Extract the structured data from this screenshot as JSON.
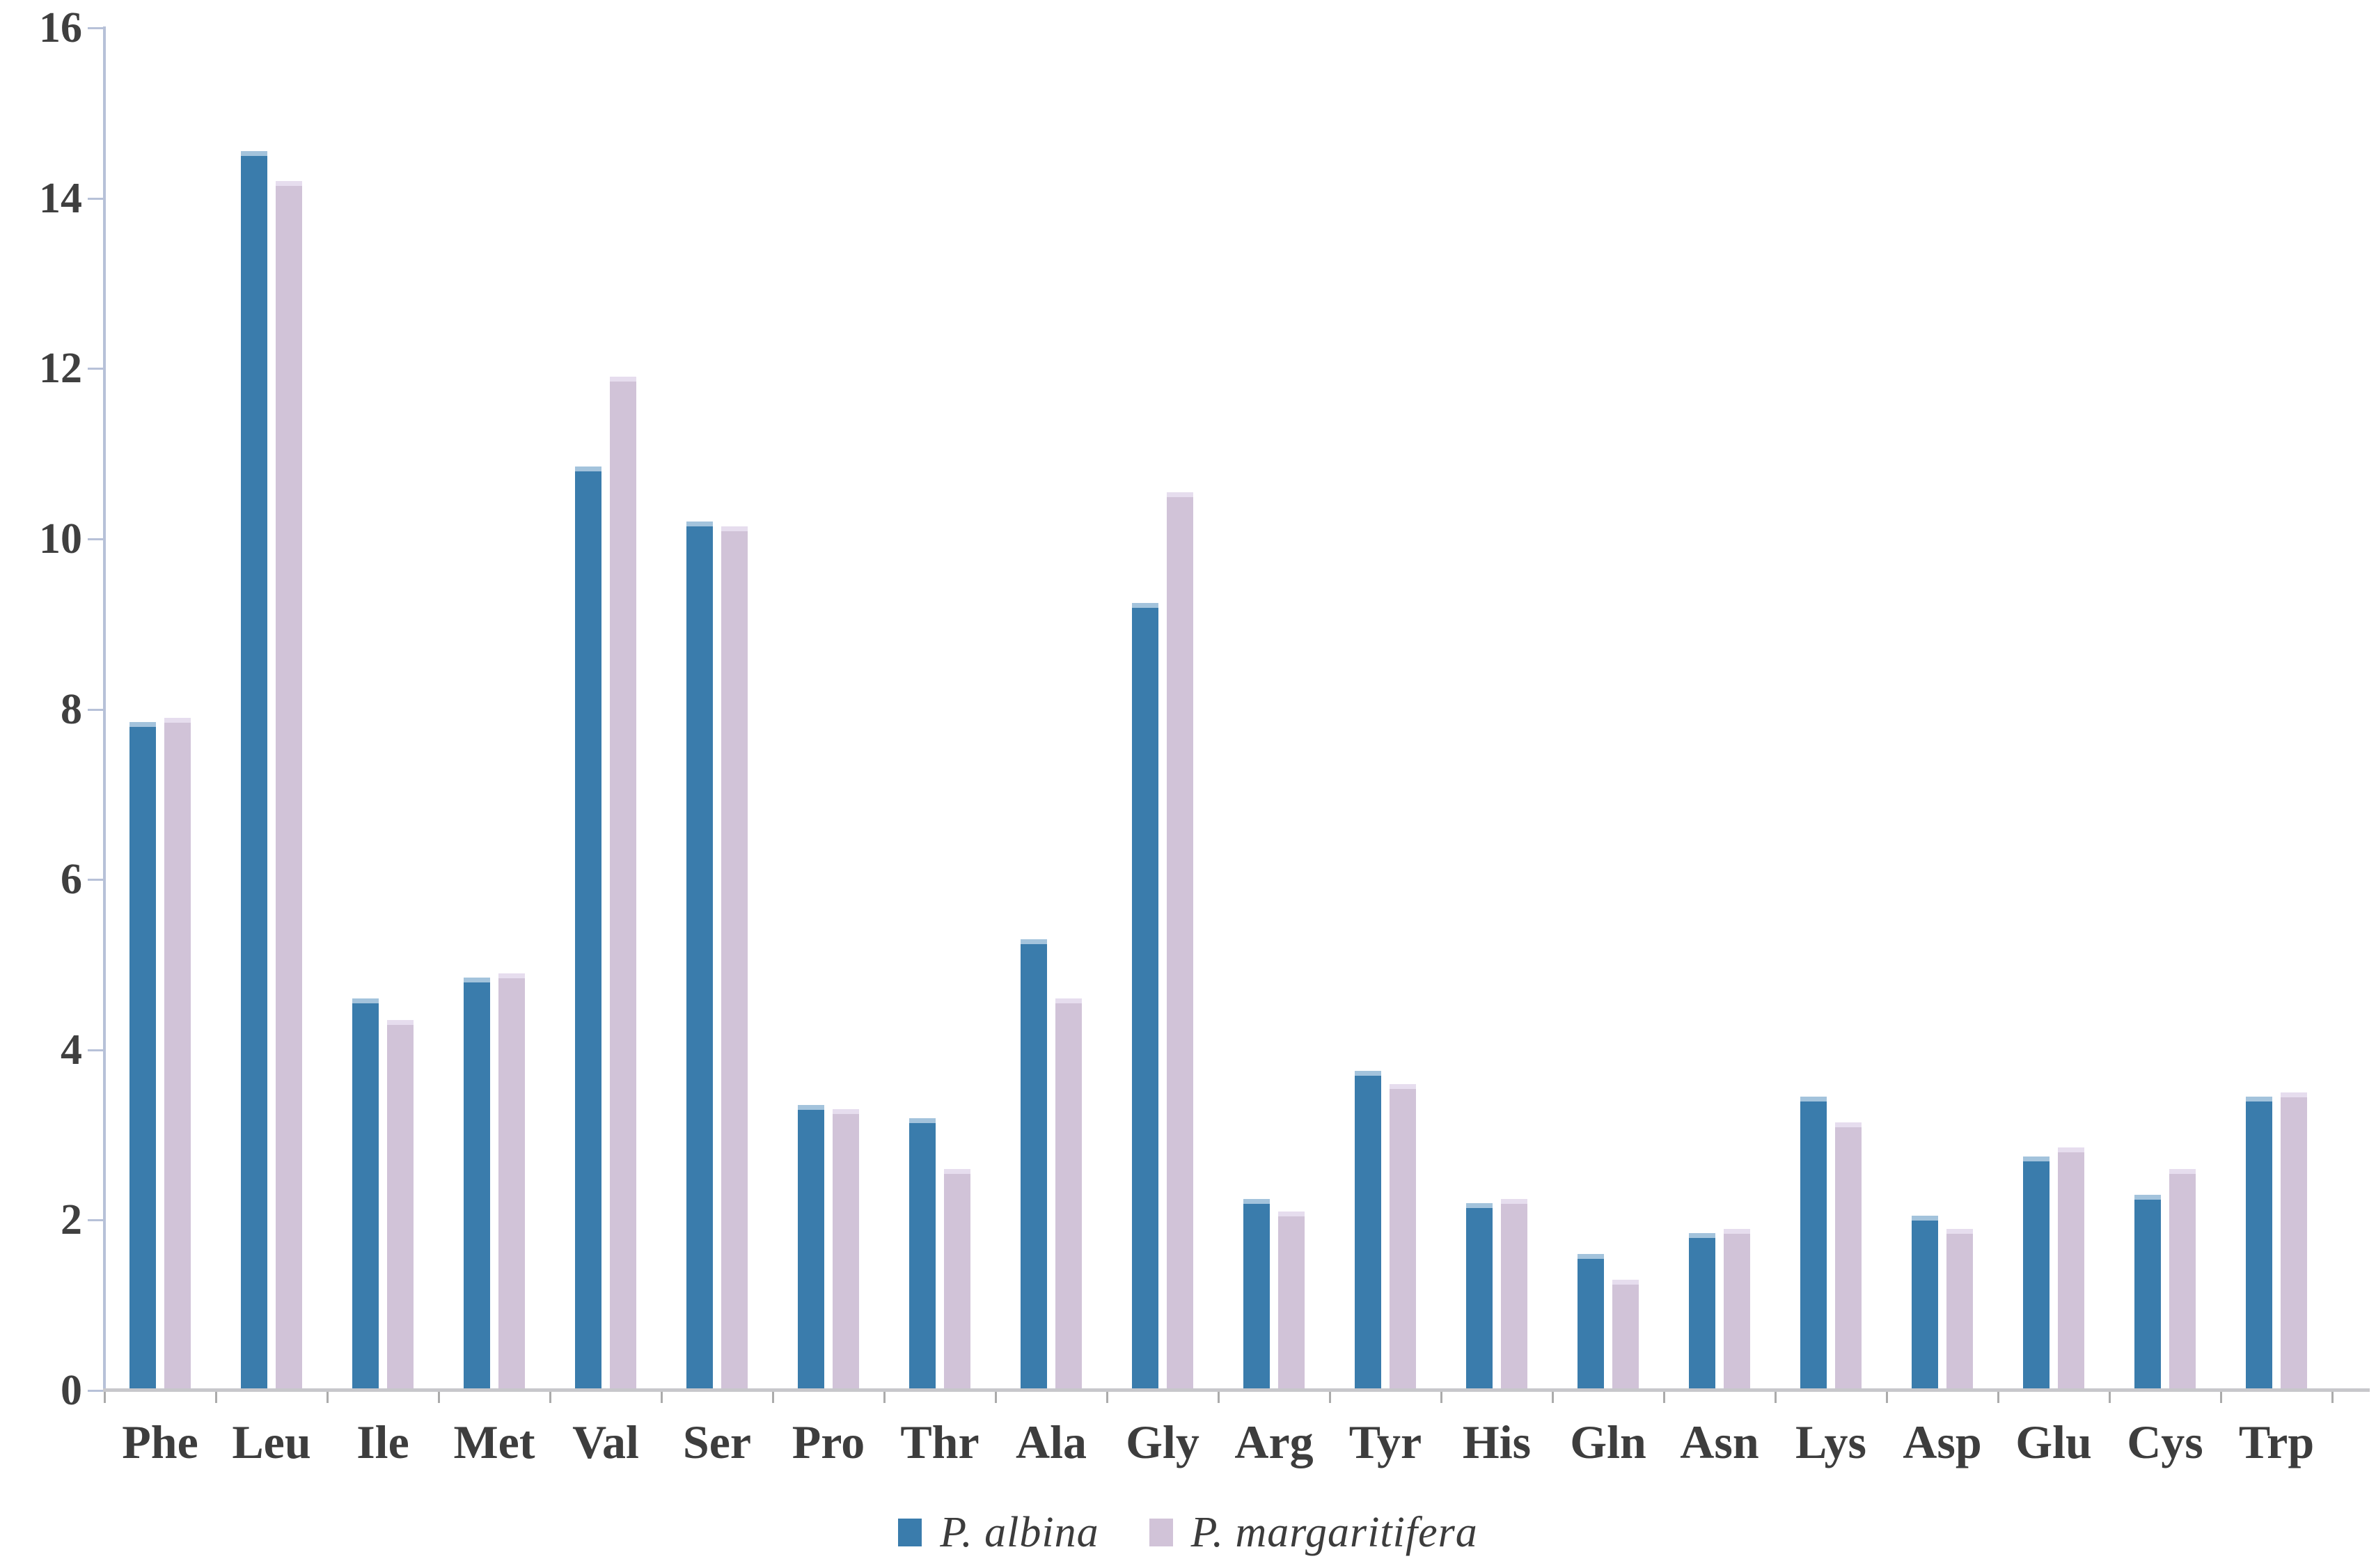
{
  "chart_data": {
    "type": "bar",
    "title": "",
    "xlabel": "",
    "ylabel": "",
    "categories": [
      "Phe",
      "Leu",
      "Ile",
      "Met",
      "Val",
      "Ser",
      "Pro",
      "Thr",
      "Ala",
      "Gly",
      "Arg",
      "Tyr",
      "His",
      "Gln",
      "Asn",
      "Lys",
      "Asp",
      "Glu",
      "Cys",
      "Trp"
    ],
    "series": [
      {
        "name": "P. albina",
        "color": "#3a7cac",
        "values": [
          7.85,
          14.55,
          4.6,
          4.85,
          10.85,
          10.2,
          3.35,
          3.2,
          5.3,
          9.25,
          2.25,
          3.75,
          2.2,
          1.6,
          1.85,
          3.45,
          2.05,
          2.75,
          2.3,
          3.45
        ]
      },
      {
        "name": "P. margaritifera",
        "color": "#d1c3d8",
        "values": [
          7.9,
          14.2,
          4.35,
          4.9,
          11.9,
          10.15,
          3.3,
          2.6,
          4.6,
          10.55,
          2.1,
          3.6,
          2.25,
          1.3,
          1.9,
          3.15,
          1.9,
          2.85,
          2.6,
          3.5
        ]
      }
    ],
    "ylim": [
      0,
      16
    ],
    "yticks": [
      0,
      2,
      4,
      6,
      8,
      10,
      12,
      14,
      16
    ],
    "grid": false,
    "legend_position": "bottom-center",
    "axis_color": "#b7c1d8",
    "tick_label_color": "#3f3f3f"
  }
}
